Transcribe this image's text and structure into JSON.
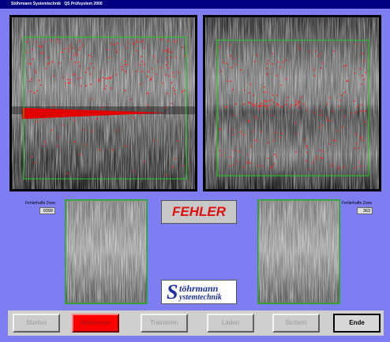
{
  "window": {
    "title": "Stöhrmann Systemtechnik   QS Prüfsystem 2000"
  },
  "status": "FEHLER",
  "zones": [
    {
      "label": "Fehlerhafte Zone",
      "value": "9399"
    },
    {
      "label": "Fehlerhafte Zone",
      "value": "363"
    }
  ],
  "logo": {
    "initial": "S",
    "line1": "töhrmann",
    "line2": "ystemtechnik"
  },
  "buttons": [
    "Starten",
    "Abbrechen",
    "Trainieren",
    "Laden",
    "Sichern",
    "Ende"
  ]
}
